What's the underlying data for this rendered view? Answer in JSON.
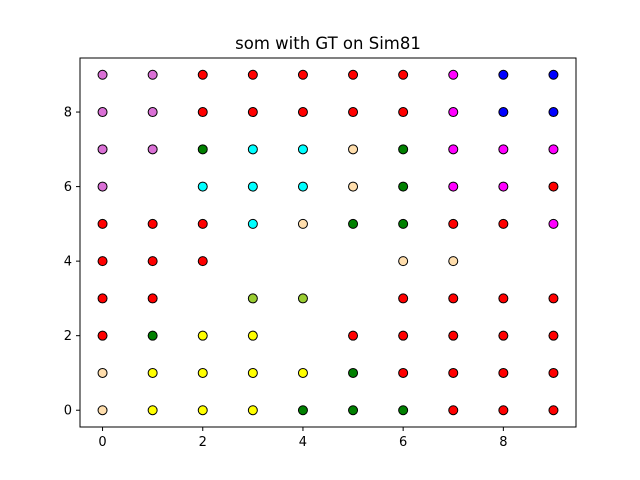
{
  "chart_data": {
    "type": "scatter",
    "title": "som with GT on Sim81",
    "xlabel": "",
    "ylabel": "",
    "xlim": [
      -0.45,
      9.45
    ],
    "ylim": [
      -0.45,
      9.45
    ],
    "xticks": [
      0,
      2,
      4,
      6,
      8
    ],
    "yticks": [
      0,
      2,
      4,
      6,
      8
    ],
    "grid": false,
    "legend": "none",
    "points": [
      {
        "x": 0,
        "y": 9,
        "color": "#da70d6"
      },
      {
        "x": 1,
        "y": 9,
        "color": "#da70d6"
      },
      {
        "x": 2,
        "y": 9,
        "color": "#ff0000"
      },
      {
        "x": 3,
        "y": 9,
        "color": "#ff0000"
      },
      {
        "x": 4,
        "y": 9,
        "color": "#ff0000"
      },
      {
        "x": 5,
        "y": 9,
        "color": "#ff0000"
      },
      {
        "x": 6,
        "y": 9,
        "color": "#ff0000"
      },
      {
        "x": 7,
        "y": 9,
        "color": "#ff00ff"
      },
      {
        "x": 8,
        "y": 9,
        "color": "#0000ff"
      },
      {
        "x": 9,
        "y": 9,
        "color": "#0000ff"
      },
      {
        "x": 0,
        "y": 8,
        "color": "#da70d6"
      },
      {
        "x": 1,
        "y": 8,
        "color": "#da70d6"
      },
      {
        "x": 2,
        "y": 8,
        "color": "#ff0000"
      },
      {
        "x": 3,
        "y": 8,
        "color": "#ff0000"
      },
      {
        "x": 4,
        "y": 8,
        "color": "#ff0000"
      },
      {
        "x": 5,
        "y": 8,
        "color": "#ff0000"
      },
      {
        "x": 6,
        "y": 8,
        "color": "#ff0000"
      },
      {
        "x": 7,
        "y": 8,
        "color": "#ff00ff"
      },
      {
        "x": 8,
        "y": 8,
        "color": "#0000ff"
      },
      {
        "x": 9,
        "y": 8,
        "color": "#0000ff"
      },
      {
        "x": 0,
        "y": 7,
        "color": "#da70d6"
      },
      {
        "x": 1,
        "y": 7,
        "color": "#da70d6"
      },
      {
        "x": 2,
        "y": 7,
        "color": "#008000"
      },
      {
        "x": 3,
        "y": 7,
        "color": "#00ffff"
      },
      {
        "x": 4,
        "y": 7,
        "color": "#00ffff"
      },
      {
        "x": 5,
        "y": 7,
        "color": "#ffdead"
      },
      {
        "x": 6,
        "y": 7,
        "color": "#008000"
      },
      {
        "x": 7,
        "y": 7,
        "color": "#ff00ff"
      },
      {
        "x": 8,
        "y": 7,
        "color": "#ff00ff"
      },
      {
        "x": 9,
        "y": 7,
        "color": "#ff00ff"
      },
      {
        "x": 0,
        "y": 6,
        "color": "#da70d6"
      },
      {
        "x": 2,
        "y": 6,
        "color": "#00ffff"
      },
      {
        "x": 3,
        "y": 6,
        "color": "#00ffff"
      },
      {
        "x": 4,
        "y": 6,
        "color": "#00ffff"
      },
      {
        "x": 5,
        "y": 6,
        "color": "#ffdead"
      },
      {
        "x": 6,
        "y": 6,
        "color": "#008000"
      },
      {
        "x": 7,
        "y": 6,
        "color": "#ff00ff"
      },
      {
        "x": 8,
        "y": 6,
        "color": "#ff00ff"
      },
      {
        "x": 9,
        "y": 6,
        "color": "#ff0000"
      },
      {
        "x": 0,
        "y": 5,
        "color": "#ff0000"
      },
      {
        "x": 1,
        "y": 5,
        "color": "#ff0000"
      },
      {
        "x": 2,
        "y": 5,
        "color": "#ff0000"
      },
      {
        "x": 3,
        "y": 5,
        "color": "#00ffff"
      },
      {
        "x": 4,
        "y": 5,
        "color": "#ffdead"
      },
      {
        "x": 5,
        "y": 5,
        "color": "#008000"
      },
      {
        "x": 6,
        "y": 5,
        "color": "#008000"
      },
      {
        "x": 7,
        "y": 5,
        "color": "#ff0000"
      },
      {
        "x": 8,
        "y": 5,
        "color": "#ff0000"
      },
      {
        "x": 9,
        "y": 5,
        "color": "#ff00ff"
      },
      {
        "x": 0,
        "y": 4,
        "color": "#ff0000"
      },
      {
        "x": 1,
        "y": 4,
        "color": "#ff0000"
      },
      {
        "x": 2,
        "y": 4,
        "color": "#ff0000"
      },
      {
        "x": 6,
        "y": 4,
        "color": "#ffdead"
      },
      {
        "x": 7,
        "y": 4,
        "color": "#ffdead"
      },
      {
        "x": 0,
        "y": 3,
        "color": "#ff0000"
      },
      {
        "x": 1,
        "y": 3,
        "color": "#ff0000"
      },
      {
        "x": 3,
        "y": 3,
        "color": "#9acd32"
      },
      {
        "x": 4,
        "y": 3,
        "color": "#9acd32"
      },
      {
        "x": 6,
        "y": 3,
        "color": "#ff0000"
      },
      {
        "x": 7,
        "y": 3,
        "color": "#ff0000"
      },
      {
        "x": 8,
        "y": 3,
        "color": "#ff0000"
      },
      {
        "x": 9,
        "y": 3,
        "color": "#ff0000"
      },
      {
        "x": 0,
        "y": 2,
        "color": "#ff0000"
      },
      {
        "x": 1,
        "y": 2,
        "color": "#008000"
      },
      {
        "x": 2,
        "y": 2,
        "color": "#ffff00"
      },
      {
        "x": 3,
        "y": 2,
        "color": "#ffff00"
      },
      {
        "x": 5,
        "y": 2,
        "color": "#ff0000"
      },
      {
        "x": 6,
        "y": 2,
        "color": "#ff0000"
      },
      {
        "x": 7,
        "y": 2,
        "color": "#ff0000"
      },
      {
        "x": 8,
        "y": 2,
        "color": "#ff0000"
      },
      {
        "x": 9,
        "y": 2,
        "color": "#ff0000"
      },
      {
        "x": 0,
        "y": 1,
        "color": "#ffdead"
      },
      {
        "x": 1,
        "y": 1,
        "color": "#ffff00"
      },
      {
        "x": 2,
        "y": 1,
        "color": "#ffff00"
      },
      {
        "x": 3,
        "y": 1,
        "color": "#ffff00"
      },
      {
        "x": 4,
        "y": 1,
        "color": "#ffff00"
      },
      {
        "x": 5,
        "y": 1,
        "color": "#008000"
      },
      {
        "x": 6,
        "y": 1,
        "color": "#ff0000"
      },
      {
        "x": 7,
        "y": 1,
        "color": "#ff0000"
      },
      {
        "x": 8,
        "y": 1,
        "color": "#ff0000"
      },
      {
        "x": 9,
        "y": 1,
        "color": "#ff0000"
      },
      {
        "x": 0,
        "y": 0,
        "color": "#ffdead"
      },
      {
        "x": 1,
        "y": 0,
        "color": "#ffff00"
      },
      {
        "x": 2,
        "y": 0,
        "color": "#ffff00"
      },
      {
        "x": 3,
        "y": 0,
        "color": "#ffff00"
      },
      {
        "x": 4,
        "y": 0,
        "color": "#008000"
      },
      {
        "x": 5,
        "y": 0,
        "color": "#008000"
      },
      {
        "x": 6,
        "y": 0,
        "color": "#008000"
      },
      {
        "x": 7,
        "y": 0,
        "color": "#ff0000"
      },
      {
        "x": 8,
        "y": 0,
        "color": "#ff0000"
      },
      {
        "x": 9,
        "y": 0,
        "color": "#ff0000"
      }
    ]
  }
}
